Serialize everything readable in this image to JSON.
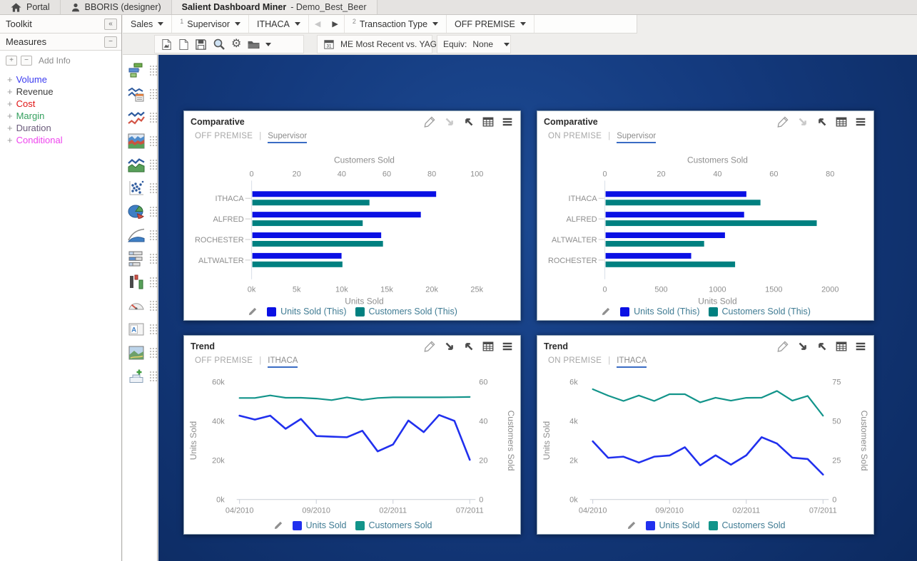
{
  "header": {
    "portal_label": "Portal",
    "user_label": "BBORIS (designer)",
    "app_title": "Salient Dashboard Miner",
    "document_title": " - Demo_Best_Beer"
  },
  "filter_bar": {
    "sales_label": "Sales",
    "groups": [
      {
        "index": "1",
        "name": "Supervisor",
        "value": "ITHACA"
      },
      {
        "index": "2",
        "name": "Transaction Type",
        "value": "OFF PREMISE"
      }
    ]
  },
  "action_bar": {
    "icons": [
      "export-report-icon",
      "new-dashboard-icon",
      "save-icon",
      "explore-icon",
      "settings-gear-icon",
      "open-folder-icon"
    ],
    "date_selector": "ME Most Recent vs. YAG",
    "equiv_label": "Equiv:",
    "equiv_value": "None"
  },
  "sidebar": {
    "toolkit_title": "Toolkit",
    "measures_title": "Measures",
    "add_info_label": "Add Info",
    "measures": [
      {
        "label": "Volume",
        "color": "#3b3bf0"
      },
      {
        "label": "Revenue",
        "color": "#3c3c3c"
      },
      {
        "label": "Cost",
        "color": "#e01414"
      },
      {
        "label": "Margin",
        "color": "#35a05f"
      },
      {
        "label": "Duration",
        "color": "#6b5b7b"
      },
      {
        "label": "Conditional",
        "color": "#ee44ee"
      }
    ]
  },
  "toolkit": {
    "items": [
      "comparative-chart-icon",
      "multi-comparative-chart-icon",
      "trend-chart-icon",
      "stacked-area-chart-icon",
      "line-area-chart-icon",
      "scatter-chart-icon",
      "pie-chart-icon",
      "pareto-chart-icon",
      "stacked-bar-chart-icon",
      "delta-columns-chart-icon",
      "gauge-icon",
      "text-widget-icon",
      "image-widget-icon",
      "add-widget-icon"
    ]
  },
  "ui": {
    "subtitle_separator": "|"
  },
  "panels": [
    {
      "name": "panel-comparative-off-premise",
      "title": "Comparative",
      "context": "OFF PREMISE",
      "drill": "Supervisor",
      "drilldown_enabled": false,
      "chart_data": {
        "type": "bar",
        "orientation": "horizontal",
        "categories": [
          "ITHACA",
          "ALFRED",
          "ROCHESTER",
          "ALTWALTER"
        ],
        "series": [
          {
            "name": "Units Sold (This)",
            "axis": "bottom",
            "color": "#0a10e4",
            "values": [
              20400,
              18700,
              14300,
              9900
            ]
          },
          {
            "name": "Customers Sold (This)",
            "axis": "top",
            "color": "#008080",
            "values": [
              52,
              49,
              58,
              40
            ]
          }
        ],
        "top_axis": {
          "title": "Customers Sold",
          "ticks": [
            0,
            20,
            40,
            60,
            80,
            100
          ],
          "labels": [
            "0",
            "20",
            "40",
            "60",
            "80",
            "100"
          ],
          "max": 100
        },
        "bottom_axis": {
          "title": "Units Sold",
          "ticks": [
            0,
            5000,
            10000,
            15000,
            20000,
            25000
          ],
          "labels": [
            "0k",
            "5k",
            "10k",
            "15k",
            "20k",
            "25k"
          ],
          "max": 25000
        }
      },
      "legend": [
        {
          "label": "Units Sold (This)",
          "color": "#0a10e4"
        },
        {
          "label": "Customers Sold (This)",
          "color": "#008080"
        }
      ]
    },
    {
      "name": "panel-comparative-on-premise",
      "title": "Comparative",
      "context": "ON PREMISE",
      "drill": "Supervisor",
      "drilldown_enabled": false,
      "chart_data": {
        "type": "bar",
        "orientation": "horizontal",
        "categories": [
          "ITHACA",
          "ALFRED",
          "ALTWALTER",
          "ROCHESTER"
        ],
        "series": [
          {
            "name": "Units Sold (This)",
            "axis": "bottom",
            "color": "#0a10e4",
            "values": [
              1250,
              1230,
              1060,
              760
            ]
          },
          {
            "name": "Customers Sold (This)",
            "axis": "top",
            "color": "#008080",
            "values": [
              55,
              75,
              35,
              46
            ]
          }
        ],
        "top_axis": {
          "title": "Customers Sold",
          "ticks": [
            0,
            20,
            40,
            60,
            80
          ],
          "labels": [
            "0",
            "20",
            "40",
            "60",
            "80"
          ],
          "max": 80
        },
        "bottom_axis": {
          "title": "Units Sold",
          "ticks": [
            0,
            500,
            1000,
            1500,
            2000
          ],
          "labels": [
            "0",
            "500",
            "1000",
            "1500",
            "2000"
          ],
          "max": 2000
        }
      },
      "legend": [
        {
          "label": "Units Sold (This)",
          "color": "#0a10e4"
        },
        {
          "label": "Customers Sold (This)",
          "color": "#008080"
        }
      ]
    },
    {
      "name": "panel-trend-off-premise",
      "title": "Trend",
      "context": "OFF PREMISE",
      "drill": "ITHACA",
      "drilldown_enabled": true,
      "chart_data": {
        "type": "line",
        "x_labels": [
          "04/2010",
          "09/2010",
          "02/2011",
          "07/2011"
        ],
        "x_label_indices": [
          0,
          5,
          10,
          15
        ],
        "n_points": 16,
        "series": [
          {
            "name": "Units Sold",
            "axis": "left",
            "color": "#2130ee",
            "values": [
              42700,
              40700,
              42700,
              36000,
              41000,
              32300,
              32000,
              31700,
              35000,
              24500,
              28000,
              40200,
              34300,
              43000,
              40000,
              20200
            ]
          },
          {
            "name": "Customers Sold",
            "axis": "right",
            "color": "#12948a",
            "values": [
              51.7,
              51.7,
              53,
              51.8,
              51.8,
              51.4,
              50.6,
              52,
              50.7,
              51.7,
              52,
              52,
              52,
              52,
              52.1,
              52.2
            ]
          }
        ],
        "left_axis": {
          "title": "Units Sold",
          "ticks": [
            0,
            20000,
            40000,
            60000
          ],
          "labels": [
            "0k",
            "20k",
            "40k",
            "60k"
          ],
          "max": 60000
        },
        "right_axis": {
          "title": "Customers Sold",
          "ticks": [
            0,
            20,
            40,
            60
          ],
          "labels": [
            "0",
            "20",
            "40",
            "60"
          ],
          "max": 60
        }
      },
      "legend": [
        {
          "label": "Units Sold",
          "color": "#2130ee"
        },
        {
          "label": "Customers Sold",
          "color": "#12948a"
        }
      ]
    },
    {
      "name": "panel-trend-on-premise",
      "title": "Trend",
      "context": "ON PREMISE",
      "drill": "ITHACA",
      "drilldown_enabled": true,
      "chart_data": {
        "type": "line",
        "x_labels": [
          "04/2010",
          "09/2010",
          "02/2011",
          "07/2011"
        ],
        "x_label_indices": [
          0,
          5,
          10,
          15
        ],
        "n_points": 16,
        "series": [
          {
            "name": "Units Sold",
            "axis": "left",
            "color": "#2130ee",
            "values": [
              2960,
              2120,
              2180,
              1880,
              2180,
              2240,
              2660,
              1740,
              2250,
              1770,
              2250,
              3170,
              2850,
              2130,
              2060,
              1270
            ]
          },
          {
            "name": "Customers Sold",
            "axis": "right",
            "color": "#12948a",
            "values": [
              70.2,
              66.1,
              62.7,
              66.2,
              62.7,
              67,
              67,
              61.8,
              64.8,
              62.9,
              64.7,
              64.8,
              69.1,
              62.9,
              65.9,
              53.3
            ]
          }
        ],
        "left_axis": {
          "title": "Units Sold",
          "ticks": [
            0,
            2000,
            4000,
            6000
          ],
          "labels": [
            "0k",
            "2k",
            "4k",
            "6k"
          ],
          "max": 6000
        },
        "right_axis": {
          "title": "Customers Sold",
          "ticks": [
            0,
            25,
            50,
            75
          ],
          "labels": [
            "0",
            "25",
            "50",
            "75"
          ],
          "max": 75
        }
      },
      "legend": [
        {
          "label": "Units Sold",
          "color": "#2130ee"
        },
        {
          "label": "Customers Sold",
          "color": "#12948a"
        }
      ]
    }
  ]
}
